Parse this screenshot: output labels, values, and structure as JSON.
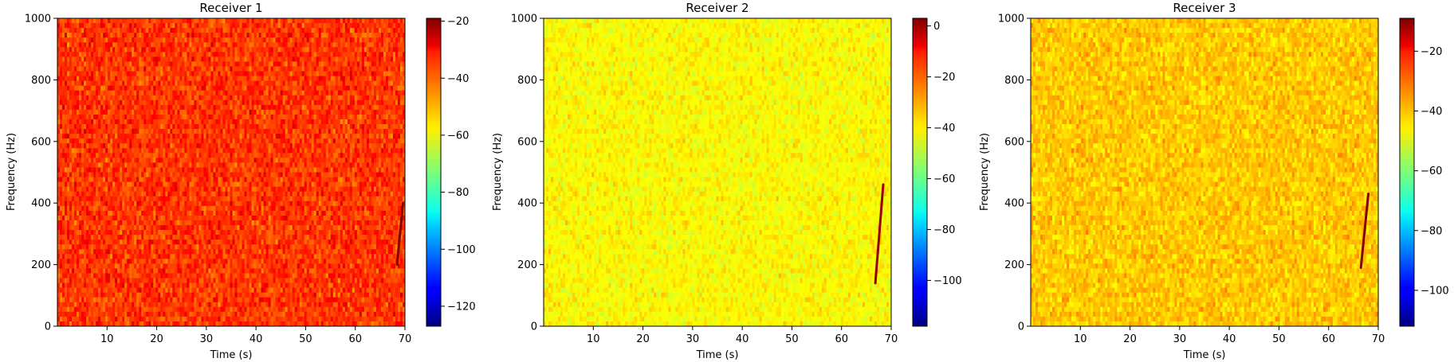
{
  "chart_data": [
    {
      "type": "heatmap",
      "title": "Receiver 1",
      "xlabel": "Time (s)",
      "ylabel": "Frequency (Hz)",
      "xlim": [
        0,
        70
      ],
      "ylim": [
        0,
        1000
      ],
      "x_ticks": [
        10,
        20,
        30,
        40,
        50,
        60,
        70
      ],
      "x_tick_labels": [
        "10",
        "20",
        "30",
        "40",
        "50",
        "60",
        "70"
      ],
      "y_ticks": [
        0,
        200,
        400,
        600,
        800,
        1000
      ],
      "y_tick_labels": [
        "0",
        "200",
        "400",
        "600",
        "800",
        "1000"
      ],
      "colormap": "jet",
      "colorbar_range": [
        -127,
        -19
      ],
      "colorbar_ticks": [
        -20,
        -40,
        -60,
        -80,
        -100,
        -120
      ],
      "colorbar_tick_labels": [
        "−20",
        "−40",
        "−60",
        "−80",
        "−100",
        "−120"
      ],
      "background_level_db": -38,
      "background_spread_db": 8,
      "chirp": {
        "t_start": 68.4,
        "t_end": 69.6,
        "f_start": 200,
        "f_end": 400,
        "level_db": -20
      }
    },
    {
      "type": "heatmap",
      "title": "Receiver 2",
      "xlabel": "Time (s)",
      "ylabel": "Frequency (Hz)",
      "xlim": [
        0,
        70
      ],
      "ylim": [
        0,
        1000
      ],
      "x_ticks": [
        10,
        20,
        30,
        40,
        50,
        60,
        70
      ],
      "x_tick_labels": [
        "10",
        "20",
        "30",
        "40",
        "50",
        "60",
        "70"
      ],
      "y_ticks": [
        0,
        200,
        400,
        600,
        800,
        1000
      ],
      "y_tick_labels": [
        "0",
        "200",
        "400",
        "600",
        "800",
        "1000"
      ],
      "colormap": "jet",
      "colorbar_range": [
        -118,
        3
      ],
      "colorbar_ticks": [
        0,
        -20,
        -40,
        -60,
        -80,
        -100
      ],
      "colorbar_tick_labels": [
        "0",
        "−20",
        "−40",
        "−60",
        "−80",
        "−100"
      ],
      "background_level_db": -42,
      "background_spread_db": 6,
      "chirp": {
        "t_start": 66.8,
        "t_end": 68.4,
        "f_start": 140,
        "f_end": 460,
        "level_db": 0
      }
    },
    {
      "type": "heatmap",
      "title": "Receiver 3",
      "xlabel": "Time (s)",
      "ylabel": "Frequency (Hz)",
      "xlim": [
        0,
        70
      ],
      "ylim": [
        0,
        1000
      ],
      "x_ticks": [
        10,
        20,
        30,
        40,
        50,
        60,
        70
      ],
      "x_tick_labels": [
        "10",
        "20",
        "30",
        "40",
        "50",
        "60",
        "70"
      ],
      "y_ticks": [
        0,
        200,
        400,
        600,
        800,
        1000
      ],
      "y_tick_labels": [
        "0",
        "200",
        "400",
        "600",
        "800",
        "1000"
      ],
      "colormap": "jet",
      "colorbar_range": [
        -112,
        -9
      ],
      "colorbar_ticks": [
        -20,
        -40,
        -60,
        -80,
        -100
      ],
      "colorbar_tick_labels": [
        "−20",
        "−40",
        "−60",
        "−80",
        "−100"
      ],
      "background_level_db": -42,
      "background_spread_db": 6,
      "chirp": {
        "t_start": 66.5,
        "t_end": 68.0,
        "f_start": 190,
        "f_end": 430,
        "level_db": -10
      }
    }
  ]
}
